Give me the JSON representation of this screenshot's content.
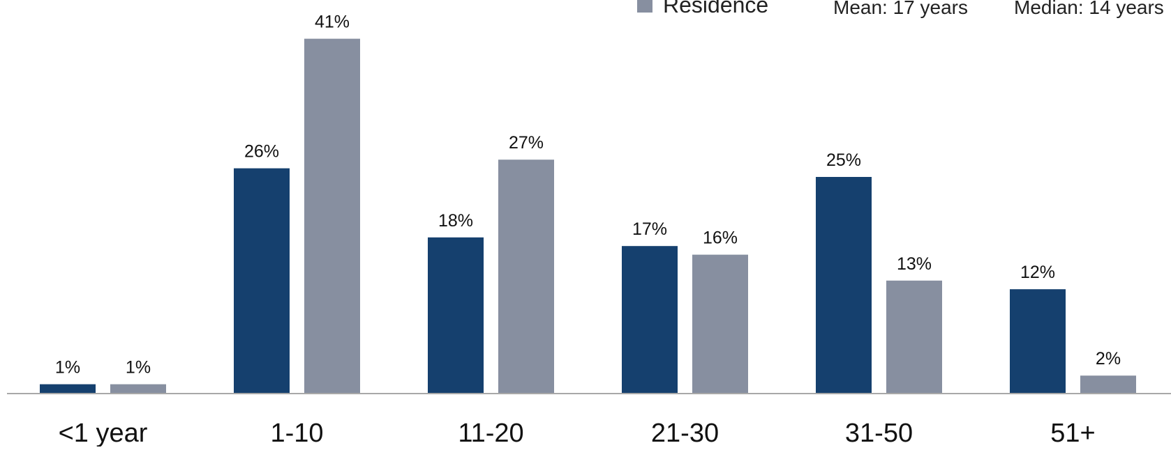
{
  "chart_data": {
    "type": "bar",
    "categories": [
      "<1 year",
      "1-10",
      "11-20",
      "21-30",
      "31-50",
      "51+"
    ],
    "series": [
      {
        "name": "",
        "color": "#15406E",
        "values": [
          1,
          26,
          18,
          17,
          25,
          12
        ]
      },
      {
        "name": "Residence",
        "color": "#878FA0",
        "values": [
          1,
          41,
          27,
          16,
          13,
          2
        ]
      }
    ],
    "data_labels": [
      [
        "1%",
        "26%",
        "18%",
        "17%",
        "25%",
        "12%"
      ],
      [
        "1%",
        "41%",
        "27%",
        "16%",
        "13%",
        "2%"
      ]
    ],
    "value_unit": "%",
    "ylim": [
      0,
      43
    ],
    "grid": false,
    "legend_position": "top-right",
    "annotations": {
      "mean": "Mean: 17 years",
      "median": "Median: 14 years"
    }
  }
}
